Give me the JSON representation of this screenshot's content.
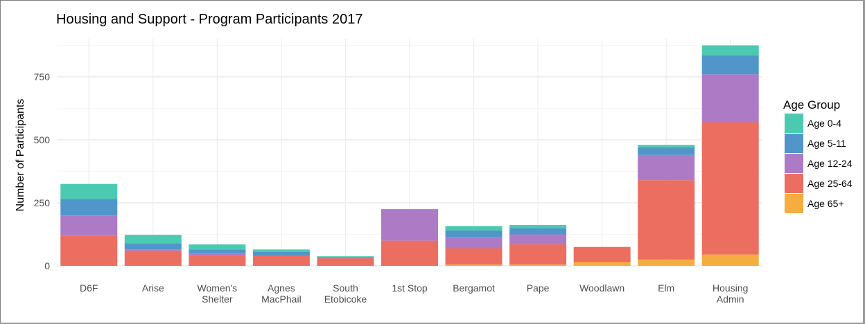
{
  "chart_data": {
    "type": "bar",
    "stacked": true,
    "title": "Housing and Support - Program Participants 2017",
    "xlabel": "",
    "ylabel": "Number of Participants",
    "ylim": [
      0,
      900
    ],
    "yticks": [
      0,
      250,
      500,
      750
    ],
    "grid": true,
    "legend": {
      "title": "Age Group",
      "position": "right"
    },
    "categories": [
      "D6F",
      "Arise",
      "Women's Shelter",
      "Agnes MacPhail",
      "South Etobicoke",
      "1st Stop",
      "Bergamot",
      "Pape",
      "Woodlawn",
      "Elm",
      "Housing Admin"
    ],
    "category_lines": [
      [
        "D6F"
      ],
      [
        "Arise"
      ],
      [
        "Women's",
        "Shelter"
      ],
      [
        "Agnes",
        "MacPhail"
      ],
      [
        "South",
        "Etobicoke"
      ],
      [
        "1st Stop"
      ],
      [
        "Bergamot"
      ],
      [
        "Pape"
      ],
      [
        "Woodlawn"
      ],
      [
        "Elm"
      ],
      [
        "Housing",
        "Admin"
      ]
    ],
    "series": [
      {
        "name": "Age 65+",
        "color": "#f5ad3f",
        "values": [
          0,
          0,
          0,
          0,
          0,
          0,
          5,
          5,
          15,
          25,
          45
        ]
      },
      {
        "name": "Age 25-64",
        "color": "#ec6e61",
        "values": [
          120,
          60,
          40,
          40,
          30,
          100,
          65,
          80,
          60,
          315,
          525
        ]
      },
      {
        "name": "Age 12-24",
        "color": "#ad7bc6",
        "values": [
          80,
          5,
          10,
          0,
          0,
          125,
          45,
          40,
          0,
          100,
          190
        ]
      },
      {
        "name": "Age 5-11",
        "color": "#5096c9",
        "values": [
          65,
          25,
          15,
          15,
          3,
          0,
          25,
          25,
          0,
          30,
          75
        ]
      },
      {
        "name": "Age 0-4",
        "color": "#4ccab1",
        "values": [
          60,
          33,
          20,
          10,
          5,
          0,
          18,
          12,
          0,
          10,
          40
        ]
      }
    ],
    "legend_order": [
      "Age 0-4",
      "Age 5-11",
      "Age 12-24",
      "Age 25-64",
      "Age 65+"
    ]
  }
}
